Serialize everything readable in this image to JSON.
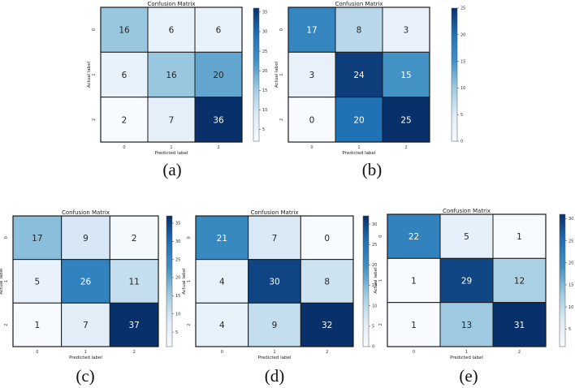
{
  "chart_data": [
    {
      "type": "heatmap",
      "panel": "(a)",
      "title": "Confusion Matrix",
      "xlabel": "Predicted label",
      "ylabel": "Actual label",
      "x_ticks": [
        "0",
        "1",
        "2"
      ],
      "y_ticks": [
        "0",
        "1",
        "2"
      ],
      "values": [
        [
          16,
          6,
          6
        ],
        [
          6,
          16,
          20
        ],
        [
          2,
          7,
          36
        ]
      ],
      "colorbar_range": [
        2,
        36
      ],
      "colorbar_ticks": [
        5,
        10,
        15,
        20,
        25,
        30,
        35
      ]
    },
    {
      "type": "heatmap",
      "panel": "(b)",
      "title": "Confusion Matrix",
      "xlabel": "Predicted label",
      "ylabel": "Actual label",
      "x_ticks": [
        "0",
        "1",
        "2"
      ],
      "y_ticks": [
        "0",
        "1",
        "2"
      ],
      "values": [
        [
          17,
          8,
          3
        ],
        [
          3,
          24,
          15
        ],
        [
          0,
          20,
          25
        ]
      ],
      "colorbar_range": [
        0,
        25
      ],
      "colorbar_ticks": [
        0,
        5,
        10,
        15,
        20,
        25
      ]
    },
    {
      "type": "heatmap",
      "panel": "(c)",
      "title": "Confusion Matrix",
      "xlabel": "Predicted label",
      "ylabel": "Actual label",
      "x_ticks": [
        "0",
        "1",
        "2"
      ],
      "y_ticks": [
        "0",
        "1",
        "2"
      ],
      "values": [
        [
          17,
          9,
          2
        ],
        [
          5,
          26,
          11
        ],
        [
          1,
          7,
          37
        ]
      ],
      "colorbar_range": [
        1,
        37
      ],
      "colorbar_ticks": [
        5,
        10,
        15,
        20,
        25,
        30,
        35
      ]
    },
    {
      "type": "heatmap",
      "panel": "(d)",
      "title": "Confusion Matrix",
      "xlabel": "Predicted label",
      "ylabel": "Actual label",
      "x_ticks": [
        "0",
        "1",
        "2"
      ],
      "y_ticks": [
        "0",
        "1",
        "2"
      ],
      "values": [
        [
          21,
          7,
          0
        ],
        [
          4,
          30,
          8
        ],
        [
          4,
          9,
          32
        ]
      ],
      "colorbar_range": [
        0,
        32
      ],
      "colorbar_ticks": [
        0,
        5,
        10,
        15,
        20,
        25,
        30
      ]
    },
    {
      "type": "heatmap",
      "panel": "(e)",
      "title": "Confusion Matrix",
      "xlabel": "Predicted label",
      "ylabel": "Actual label",
      "x_ticks": [
        "0",
        "1",
        "2"
      ],
      "y_ticks": [
        "0",
        "1",
        "2"
      ],
      "values": [
        [
          22,
          5,
          1
        ],
        [
          1,
          29,
          12
        ],
        [
          1,
          13,
          31
        ]
      ],
      "colorbar_range": [
        1,
        31
      ],
      "colorbar_ticks": [
        5,
        10,
        15,
        20,
        25,
        30
      ]
    }
  ],
  "colors": {
    "low": "#f7fbff",
    "mid1": "#c6dbef",
    "mid2": "#6baed6",
    "mid3": "#2171b5",
    "high": "#08306b",
    "grid": "#1a1a1a"
  }
}
